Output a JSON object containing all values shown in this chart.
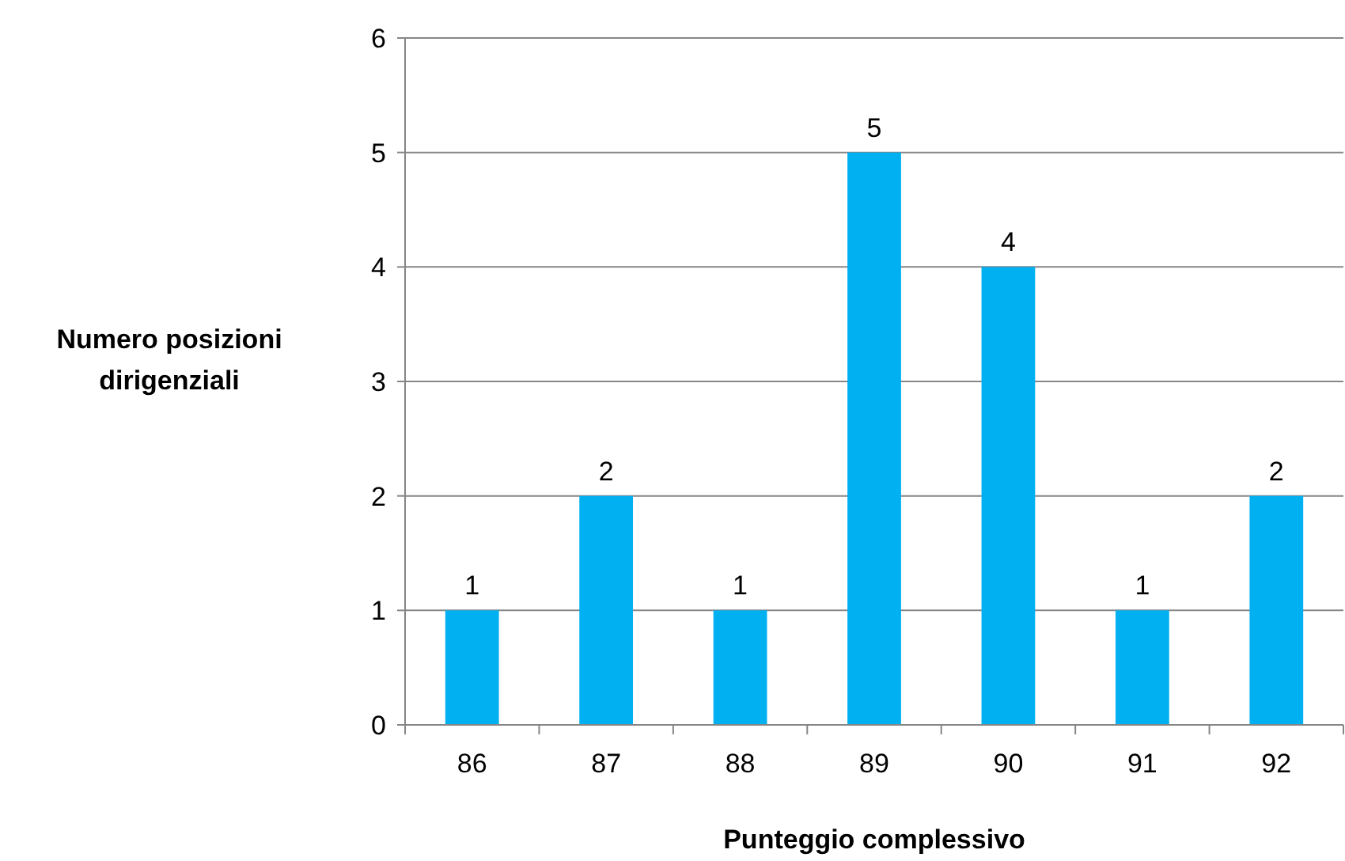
{
  "chart_data": {
    "type": "bar",
    "xlabel": "Punteggio complessivo",
    "ylabel": "Numero posizioni dirigenziali",
    "categories": [
      "86",
      "87",
      "88",
      "89",
      "90",
      "91",
      "92"
    ],
    "values": [
      1,
      2,
      1,
      5,
      4,
      1,
      2
    ],
    "color": "#00b0f0",
    "ylim": [
      0,
      6
    ],
    "yticks": [
      0,
      1,
      2,
      3,
      4,
      5,
      6
    ],
    "grid": "y",
    "data_labels": true
  }
}
